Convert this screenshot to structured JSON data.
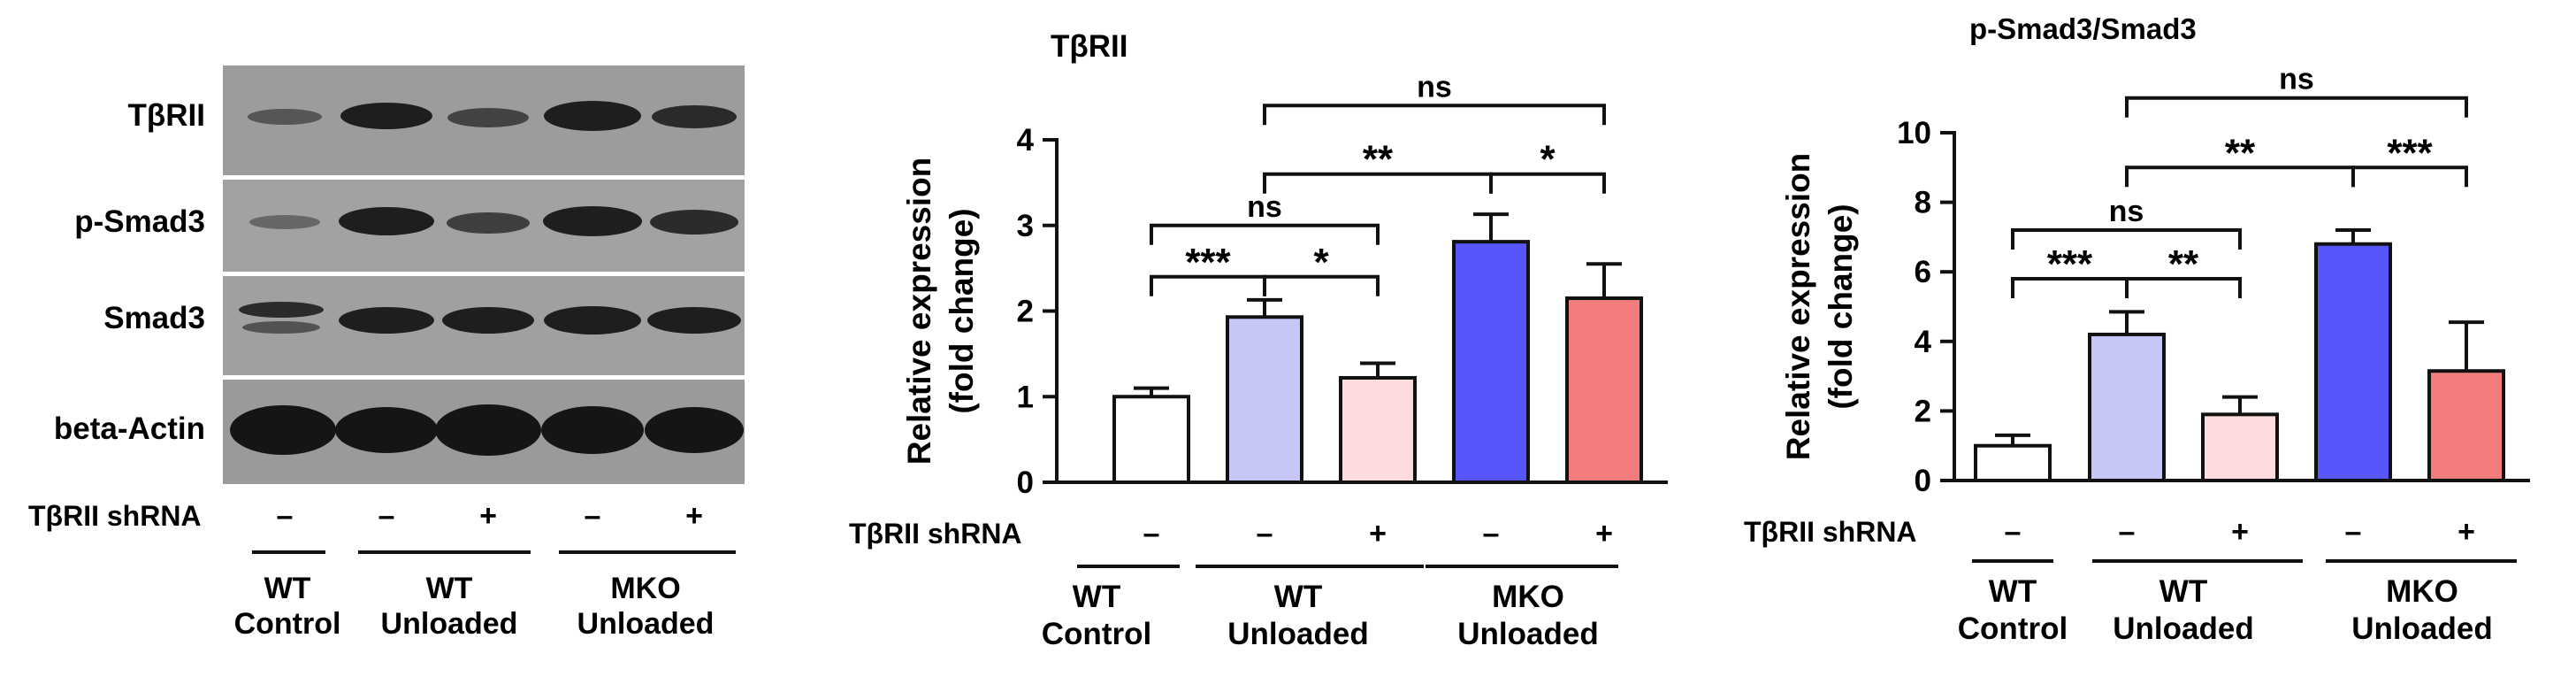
{
  "colors": {
    "wt_control": "#ffffff",
    "wt_unloaded": "#c6c7f6",
    "wt_unloaded_shrna": "#fcdcdc",
    "mko_unloaded": "#5656fa",
    "mko_unloaded_shrna": "#f37c7c",
    "ink": "#111111",
    "blot_bg": "#9a9a9a",
    "band": "#1c1c1c"
  },
  "blot": {
    "row_labels": [
      "TβRII",
      "p-Smad3",
      "Smad3",
      "beta-Actin"
    ],
    "shrna_label": "TβRII shRNA",
    "shrna_signs": [
      "–",
      "–",
      "+",
      "–",
      "+"
    ],
    "groups": [
      {
        "line1": "WT",
        "line2": "Control"
      },
      {
        "line1": "WT",
        "line2": "Unloaded"
      },
      {
        "line1": "MKO",
        "line2": "Unloaded"
      }
    ]
  },
  "chart_data": [
    {
      "type": "bar",
      "title": "TβRII",
      "ylabel": [
        "Relative expression",
        "(fold change)"
      ],
      "ylim": [
        0,
        4
      ],
      "yticks": [
        0,
        1,
        2,
        3,
        4
      ],
      "categories": [
        "WT Control",
        "WT Unloaded",
        "WT Unloaded + shRNA",
        "MKO Unloaded",
        "MKO Unloaded + shRNA"
      ],
      "values": [
        1.0,
        1.93,
        1.22,
        2.81,
        2.15
      ],
      "errors": [
        0.1,
        0.2,
        0.17,
        0.32,
        0.4
      ],
      "colors": [
        "#ffffff",
        "#c6c7f6",
        "#fcdcdc",
        "#5656fa",
        "#f37c7c"
      ],
      "shrna_label": "TβRII shRNA",
      "shrna_signs": [
        "–",
        "–",
        "+",
        "–",
        "+"
      ],
      "groups": [
        {
          "line1": "WT",
          "line2": "Control"
        },
        {
          "line1": "WT",
          "line2": "Unloaded"
        },
        {
          "line1": "MKO",
          "line2": "Unloaded"
        }
      ],
      "significance": [
        {
          "from": 0,
          "to": 1,
          "label": "***",
          "level": 2.4
        },
        {
          "from": 1,
          "to": 2,
          "label": "*",
          "level": 2.4
        },
        {
          "from": 0,
          "to": 2,
          "label": "ns",
          "level": 3.0
        },
        {
          "from": 1,
          "to": 3,
          "label": "**",
          "level": 3.6
        },
        {
          "from": 3,
          "to": 4,
          "label": "*",
          "level": 3.6
        },
        {
          "from": 1,
          "to": 4,
          "label": "ns",
          "level": 4.4
        }
      ]
    },
    {
      "type": "bar",
      "title": "p-Smad3/Smad3",
      "ylabel": [
        "Relative expression",
        "(fold change)"
      ],
      "ylim": [
        0,
        10
      ],
      "yticks": [
        0,
        2,
        4,
        6,
        8,
        10
      ],
      "categories": [
        "WT Control",
        "WT Unloaded",
        "WT Unloaded + shRNA",
        "MKO Unloaded",
        "MKO Unloaded + shRNA"
      ],
      "values": [
        1.0,
        4.2,
        1.9,
        6.8,
        3.15
      ],
      "errors": [
        0.3,
        0.65,
        0.5,
        0.4,
        1.4
      ],
      "colors": [
        "#ffffff",
        "#c6c7f6",
        "#fcdcdc",
        "#5656fa",
        "#f37c7c"
      ],
      "shrna_label": "TβRII shRNA",
      "shrna_signs": [
        "–",
        "–",
        "+",
        "–",
        "+"
      ],
      "groups": [
        {
          "line1": "WT",
          "line2": "Control"
        },
        {
          "line1": "WT",
          "line2": "Unloaded"
        },
        {
          "line1": "MKO",
          "line2": "Unloaded"
        }
      ],
      "significance": [
        {
          "from": 0,
          "to": 1,
          "label": "***",
          "level": 5.8
        },
        {
          "from": 1,
          "to": 2,
          "label": "**",
          "level": 5.8
        },
        {
          "from": 0,
          "to": 2,
          "label": "ns",
          "level": 7.2
        },
        {
          "from": 1,
          "to": 3,
          "label": "**",
          "level": 9.0
        },
        {
          "from": 3,
          "to": 4,
          "label": "***",
          "level": 9.0
        },
        {
          "from": 1,
          "to": 4,
          "label": "ns",
          "level": 11.0
        }
      ]
    }
  ]
}
